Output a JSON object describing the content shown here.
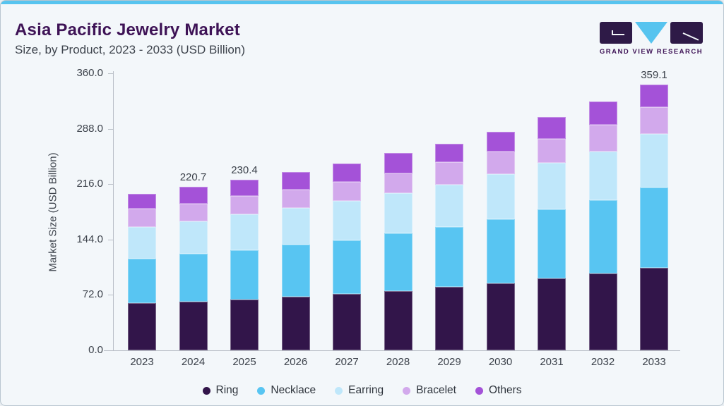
{
  "page": {
    "title": "Asia Pacific Jewelry Market",
    "subtitle": "Size, by Product, 2023 - 2033 (USD Billion)",
    "accent_color": "#57c4ef",
    "title_color": "#3e1356",
    "background_color": "#f3f7fa"
  },
  "brand": {
    "name": "GRAND VIEW RESEARCH",
    "dark_color": "#2e1a47",
    "blue_color": "#57c4ef"
  },
  "chart_data": {
    "type": "bar",
    "stacked": true,
    "title": "Asia Pacific Jewelry Market Size, by Product, 2023 - 2033 (USD Billion)",
    "xlabel": "",
    "ylabel": "Market Size (USD Billion)",
    "ylim": [
      0,
      360
    ],
    "ytick_labels": [
      "0.0",
      "72.0",
      "144.0",
      "216.0",
      "288.0",
      "360.0"
    ],
    "grid": false,
    "legend_position": "bottom",
    "categories": [
      "2023",
      "2024",
      "2025",
      "2026",
      "2027",
      "2028",
      "2029",
      "2030",
      "2031",
      "2032",
      "2033"
    ],
    "series": [
      {
        "name": "Ring",
        "color": "#32154a",
        "values": [
          64.0,
          66.0,
          68.7,
          72.6,
          76.2,
          80.0,
          85.6,
          90.3,
          96.9,
          103.5,
          111.5
        ]
      },
      {
        "name": "Necklace",
        "color": "#58c5f2",
        "values": [
          59.5,
          64.0,
          66.8,
          69.8,
          72.4,
          78.1,
          80.9,
          86.6,
          93.1,
          99.7,
          108.7
        ]
      },
      {
        "name": "Earring",
        "color": "#bfe7fa",
        "values": [
          43.5,
          44.5,
          48.0,
          50.0,
          53.6,
          54.6,
          57.4,
          61.1,
          63.0,
          64.9,
          71.8
        ]
      },
      {
        "name": "Bracelet",
        "color": "#d2a9ec",
        "values": [
          24.5,
          23.5,
          25.4,
          24.6,
          25.4,
          26.3,
          30.1,
          30.1,
          32.9,
          36.7,
          36.9
        ]
      },
      {
        "name": "Others",
        "color": "#a452d8",
        "values": [
          20.0,
          22.7,
          21.5,
          23.5,
          24.5,
          27.3,
          25.4,
          27.3,
          29.2,
          31.0,
          30.2
        ]
      }
    ],
    "totals": [
      211.5,
      220.7,
      230.4,
      240.5,
      252.1,
      266.3,
      279.4,
      295.4,
      315.1,
      335.8,
      359.1
    ],
    "value_labels": [
      "",
      "220.7",
      "230.4",
      "",
      "",
      "",
      "",
      "",
      "",
      "",
      "359.1"
    ]
  }
}
